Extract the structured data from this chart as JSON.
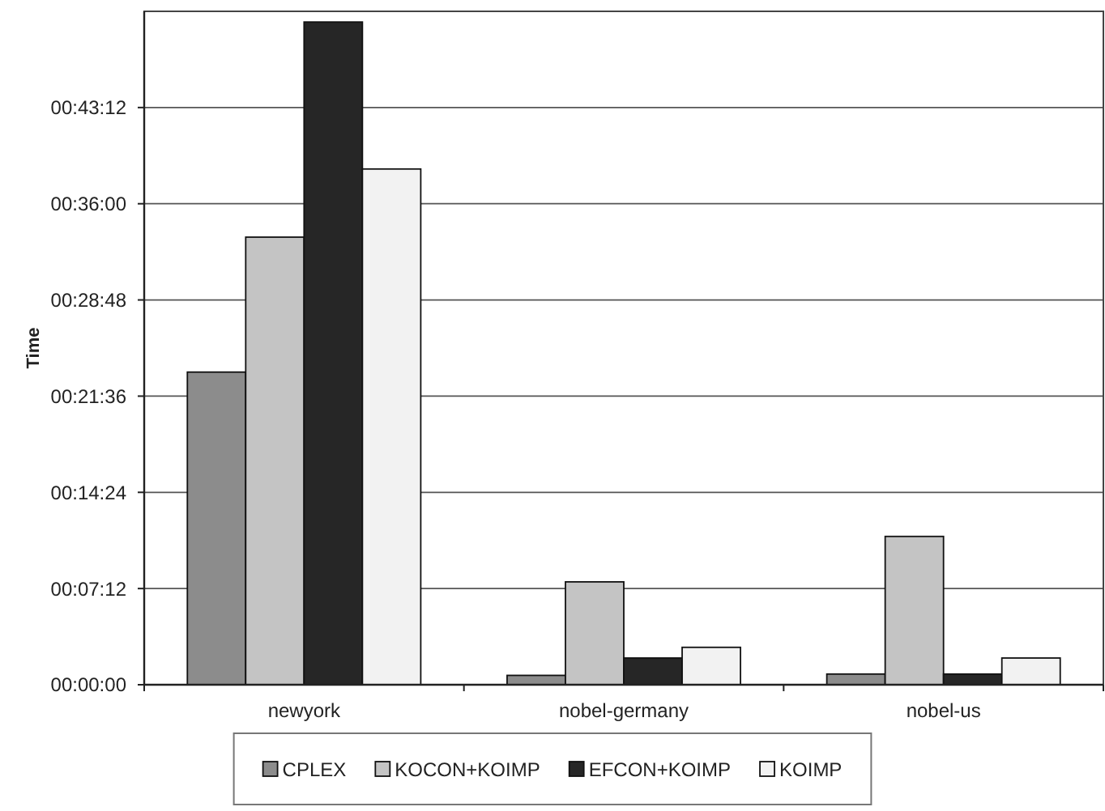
{
  "chart_data": {
    "type": "bar",
    "categories": [
      "newyork",
      "nobel-germany",
      "nobel-us"
    ],
    "ylabel": "Time",
    "series": [
      {
        "name": "CPLEX",
        "color": "#8c8c8c",
        "values": [
          23.4,
          0.7,
          0.8
        ]
      },
      {
        "name": "KOCON+KOIMP",
        "color": "#c4c4c4",
        "values": [
          33.5,
          7.7,
          11.1
        ]
      },
      {
        "name": "EFCON+KOIMP",
        "color": "#262626",
        "values": [
          49.6,
          2.0,
          0.8
        ]
      },
      {
        "name": "KOIMP",
        "color": "#f2f2f2",
        "values": [
          38.6,
          2.8,
          2.0
        ]
      }
    ],
    "ylim": [
      0,
      50.4
    ],
    "yticks": [
      {
        "value": 0,
        "label": "00:00:00"
      },
      {
        "value": 7.2,
        "label": "00:07:12"
      },
      {
        "value": 14.4,
        "label": "00:14:24"
      },
      {
        "value": 21.6,
        "label": "00:21:36"
      },
      {
        "value": 28.8,
        "label": "00:28:48"
      },
      {
        "value": 36,
        "label": "00:36:00"
      },
      {
        "value": 43.2,
        "label": "00:43:12"
      }
    ],
    "grid": "y",
    "legend": "bottom"
  }
}
